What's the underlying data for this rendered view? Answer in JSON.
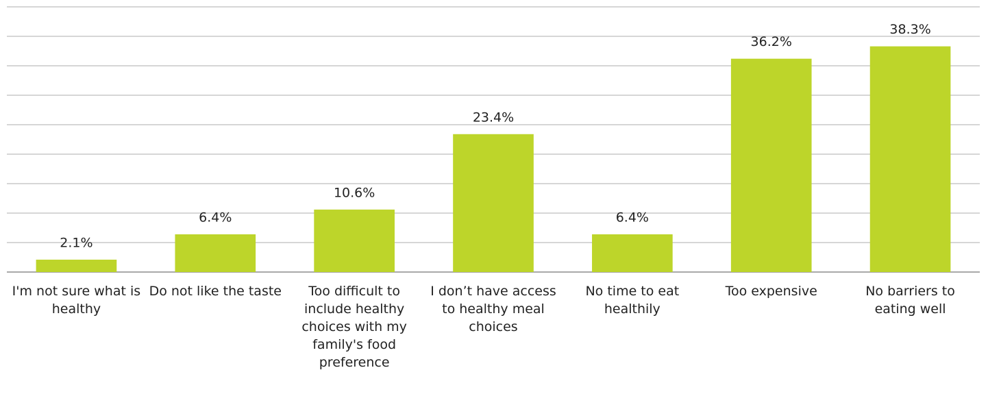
{
  "chart_data": {
    "type": "bar",
    "categories": [
      "I'm not sure what is healthy",
      "Do not like the taste",
      "Too difficult to include healthy choices with my family's food preference",
      "I don’t have access to healthy meal choices",
      "No time to eat healthily",
      "Too expensive",
      "No barriers to eating well"
    ],
    "values": [
      2.1,
      6.4,
      10.6,
      23.4,
      6.4,
      36.2,
      38.3
    ],
    "value_labels": [
      "2.1%",
      "6.4%",
      "10.6%",
      "23.4%",
      "6.4%",
      "36.2%",
      "38.3%"
    ],
    "color": "#bdd52a",
    "ylim": [
      0,
      45
    ],
    "yticks": [
      0,
      5,
      10,
      15,
      20,
      25,
      30,
      35,
      40,
      45
    ],
    "grid": true
  }
}
